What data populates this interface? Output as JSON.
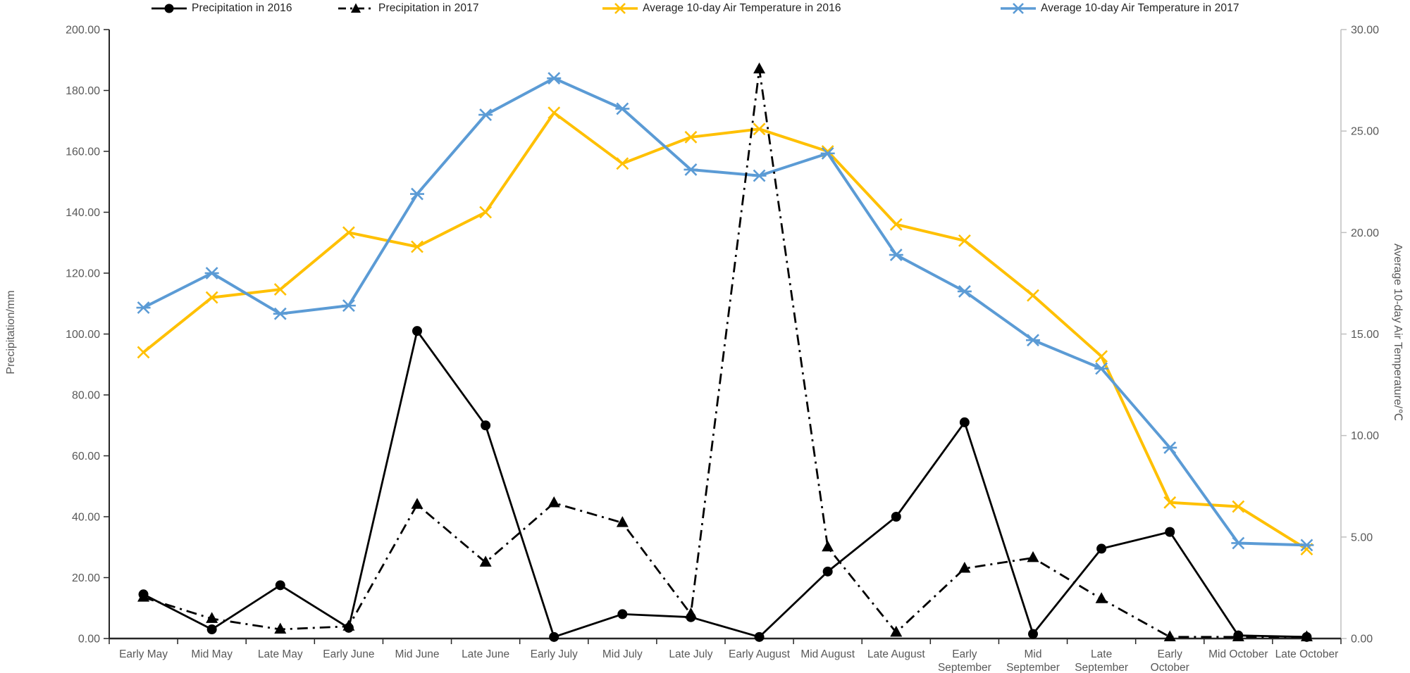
{
  "legend": {
    "items": [
      {
        "label": "Precipitation in 2016",
        "marker": "circle",
        "color": "#000000",
        "line_style": "solid"
      },
      {
        "label": "Precipitation in 2017",
        "marker": "triangle",
        "color": "#000000",
        "line_style": "dashdot"
      },
      {
        "label": "Average 10-day Air Temperature in 2016",
        "marker": "x",
        "color": "#FFC000",
        "line_style": "solid"
      },
      {
        "label": "Average 10-day Air Temperature in 2017",
        "marker": "star",
        "color": "#5B9BD5",
        "line_style": "solid"
      }
    ]
  },
  "chart_data": {
    "type": "line",
    "title": "",
    "grid": false,
    "legend_position": "top",
    "categories": [
      "Early May",
      "Mid May",
      "Late May",
      "Early June",
      "Mid June",
      "Late June",
      "Early July",
      "Mid July",
      "Late July",
      "Early August",
      "Mid August",
      "Late August",
      "Early September",
      "Mid September",
      "Late September",
      "Early October",
      "Mid October",
      "Late October"
    ],
    "left_axis": {
      "title": "Precipitation/mm",
      "min": 0,
      "max": 200,
      "tick_labels": [
        "0.00",
        "20.00",
        "40.00",
        "60.00",
        "80.00",
        "100.00",
        "120.00",
        "140.00",
        "160.00",
        "180.00",
        "200.00"
      ]
    },
    "right_axis": {
      "title": "Average 10-day Air Temperature/℃",
      "min": 0,
      "max": 30,
      "tick_labels": [
        "0.00",
        "5.00",
        "10.00",
        "15.00",
        "20.00",
        "25.00",
        "30.00"
      ]
    },
    "series": [
      {
        "name": "Precipitation in 2016",
        "axis": "left",
        "color": "#000000",
        "marker": "circle",
        "line_style": "solid",
        "values": [
          14.5,
          3,
          17.5,
          3.5,
          101,
          70,
          0.5,
          8,
          7,
          0.5,
          22,
          40,
          71,
          1.5,
          29.5,
          35,
          1,
          0.5
        ]
      },
      {
        "name": "Precipitation in 2017",
        "axis": "left",
        "color": "#000000",
        "marker": "triangle",
        "line_style": "dashdot",
        "values": [
          13.5,
          6.5,
          3,
          4,
          44,
          25,
          44.5,
          38,
          8,
          187,
          30,
          2,
          23,
          26.5,
          13,
          0.5,
          0.5,
          0.5
        ]
      },
      {
        "name": "Average 10-day Air Temperature in 2016",
        "axis": "right",
        "color": "#FFC000",
        "marker": "x",
        "line_style": "solid",
        "values": [
          14.1,
          16.8,
          17.2,
          20.0,
          19.3,
          21.0,
          25.9,
          23.4,
          24.7,
          25.1,
          24.0,
          20.4,
          19.6,
          16.9,
          13.9,
          6.7,
          6.5,
          4.4
        ]
      },
      {
        "name": "Average 10-day Air Temperature in 2017",
        "axis": "right",
        "color": "#5B9BD5",
        "marker": "star",
        "line_style": "solid",
        "values": [
          16.3,
          18.0,
          16.0,
          16.4,
          21.9,
          25.8,
          27.6,
          26.1,
          23.1,
          22.8,
          23.9,
          18.9,
          17.1,
          14.7,
          13.3,
          9.4,
          4.7,
          4.6
        ]
      }
    ]
  },
  "colors": {
    "axis_dark": "#262626",
    "axis_light": "#BFBFBF",
    "tick_text": "#595959",
    "temp_2016": "#FFC000",
    "temp_2017": "#5B9BD5",
    "precipitation": "#000000"
  }
}
